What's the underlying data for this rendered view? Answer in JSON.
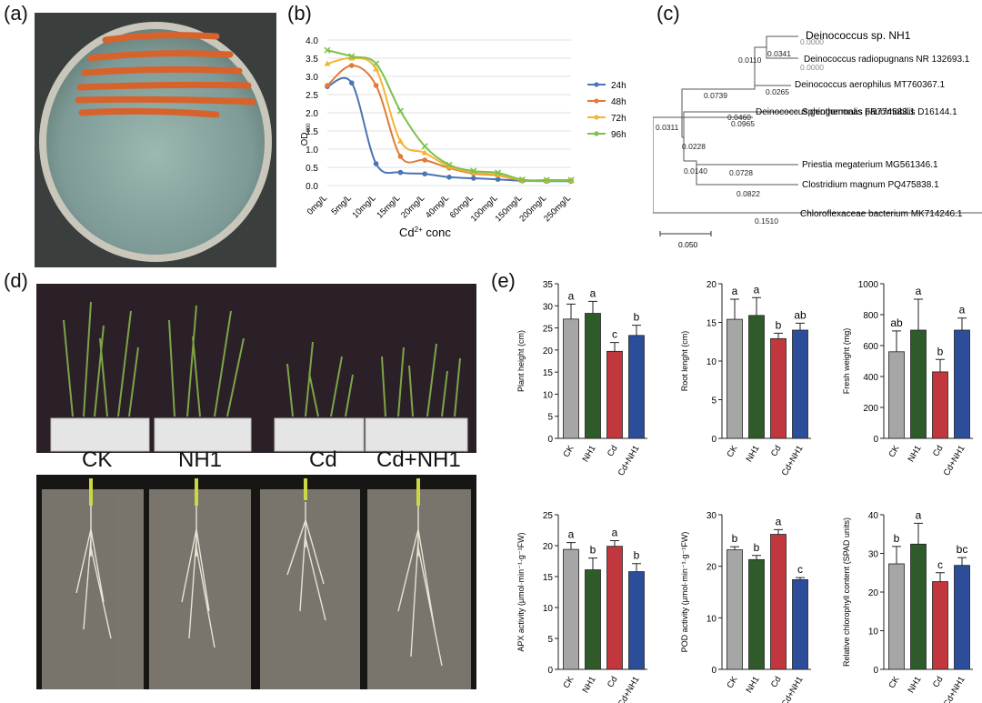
{
  "panel_labels": [
    "(a)",
    "(b)",
    "(c)",
    "(d)",
    "(e)"
  ],
  "photo_labels": {
    "ck": "CK",
    "nh1": "NH1",
    "cd": "Cd",
    "cdnh1": "Cd+NH1"
  },
  "colors": {
    "CK": "#a6a6a6",
    "NH1": "#2f5b2a",
    "Cd": "#c1373d",
    "Cd+NH1": "#2b4d9a",
    "24h": "#4a74b4",
    "48h": "#e07b39",
    "72h": "#f4b533",
    "96h": "#7cc24a"
  },
  "chart_data": [
    {
      "type": "line",
      "panel": "(b)",
      "categories": [
        "0mg/L",
        "5mg/L",
        "10mg/L",
        "15mg/L",
        "20mg/L",
        "40mg/L",
        "60mg/L",
        "100mg/L",
        "150mg/L",
        "200mg/L",
        "250mg/L"
      ],
      "xlabel_parts": [
        "Cd",
        "2+",
        " conc"
      ],
      "ylabel_parts": [
        "OD",
        "600"
      ],
      "ylim": [
        0,
        4.0
      ],
      "yticks": [
        "0.0",
        "0.5",
        "1.0",
        "1.5",
        "2.0",
        "2.5",
        "3.0",
        "3.5",
        "4.0"
      ],
      "grid": true,
      "legend_position": "right",
      "series": [
        {
          "name": "24h",
          "values": [
            2.72,
            2.82,
            0.6,
            0.36,
            0.32,
            0.23,
            0.2,
            0.17,
            0.13,
            0.12,
            0.12
          ]
        },
        {
          "name": "48h",
          "values": [
            2.75,
            3.3,
            2.75,
            0.8,
            0.7,
            0.48,
            0.33,
            0.28,
            0.14,
            0.13,
            0.13
          ]
        },
        {
          "name": "72h",
          "values": [
            3.35,
            3.5,
            3.2,
            1.22,
            0.9,
            0.52,
            0.36,
            0.3,
            0.15,
            0.14,
            0.14
          ]
        },
        {
          "name": "96h",
          "values": [
            3.72,
            3.55,
            3.35,
            2.05,
            1.08,
            0.57,
            0.4,
            0.35,
            0.16,
            0.15,
            0.15
          ]
        }
      ]
    },
    {
      "type": "tree",
      "panel": "(c)",
      "taxa": [
        "Deinococcus sp. NH1",
        "Deinococcus radiopugnans NR 132693.1",
        "Deinococcus aerophilus MT760367.1",
        "Deinococcus geothermalis FR774583.1",
        "Sphingomonas paucimobilis D16144.1",
        "Priestia megaterium MG561346.1",
        "Clostridium magnum PQ475838.1",
        "Chloroflexaceae bacterium MK714246.1"
      ],
      "branch_lengths": {
        "nh1": "0.0000",
        "radiopugnans": "0.0000",
        "n_nh1_rad": "0.0341",
        "n_aero": "0.0110",
        "aerophilus": "0.0265",
        "n_deino": "0.0739",
        "geothermalis": "0.0460",
        "n_ingroup": "0.0311",
        "sphingo": "0.0965",
        "n_sph_bac": "0.0228",
        "priestia": "0.0728",
        "n_pr_cl": "0.0140",
        "clostridium": "0.0822",
        "chloroflexaceae": "0.1510"
      },
      "scale_bar": "0.050"
    },
    {
      "type": "bar",
      "panel": "(e)",
      "categories": [
        "CK",
        "NH1",
        "Cd",
        "Cd+NH1"
      ],
      "subplots": [
        {
          "ylabel": "Plant height (cm)",
          "ylim": [
            0,
            35
          ],
          "yticks": [
            "0",
            "5",
            "10",
            "15",
            "20",
            "25",
            "30",
            "35"
          ],
          "values": [
            27,
            28.3,
            19.7,
            23.3
          ],
          "errors": [
            3.4,
            2.7,
            2.0,
            2.3
          ],
          "letters": [
            "a",
            "a",
            "c",
            "b"
          ]
        },
        {
          "ylabel": "Root lenght (cm)",
          "ylim": [
            0,
            20
          ],
          "yticks": [
            "0",
            "5",
            "10",
            "15",
            "20"
          ],
          "values": [
            15.4,
            15.9,
            12.9,
            14.0
          ],
          "errors": [
            2.6,
            2.3,
            0.7,
            0.9
          ],
          "letters": [
            "a",
            "a",
            "b",
            "ab"
          ]
        },
        {
          "ylabel": "Fresh weight (mg)",
          "ylim": [
            0,
            1000
          ],
          "yticks": [
            "0",
            "200",
            "400",
            "600",
            "800",
            "1000"
          ],
          "values": [
            560,
            700,
            430,
            700
          ],
          "errors": [
            135,
            200,
            80,
            78
          ],
          "letters": [
            "ab",
            "a",
            "b",
            "a"
          ]
        },
        {
          "ylabel": "APX activity (μmol·min⁻¹·g⁻¹FW)",
          "ylim": [
            0,
            25
          ],
          "yticks": [
            "0",
            "5",
            "10",
            "15",
            "20",
            "25"
          ],
          "values": [
            19.4,
            16.1,
            19.9,
            15.8
          ],
          "errors": [
            1.1,
            1.9,
            0.9,
            1.3
          ],
          "letters": [
            "a",
            "b",
            "a",
            "b"
          ]
        },
        {
          "ylabel": "POD activity (μmol·min⁻¹·g⁻¹FW)",
          "ylim": [
            0,
            30
          ],
          "yticks": [
            "0",
            "10",
            "20",
            "30"
          ],
          "values": [
            23.2,
            21.3,
            26.2,
            17.4
          ],
          "errors": [
            0.6,
            0.8,
            0.9,
            0.4
          ],
          "letters": [
            "b",
            "b",
            "a",
            "c"
          ]
        },
        {
          "ylabel": "Relative chlorophyll content (SPAD units)",
          "ylim": [
            0,
            40
          ],
          "yticks": [
            "0",
            "10",
            "20",
            "30",
            "40"
          ],
          "values": [
            27.3,
            32.4,
            22.7,
            26.9
          ],
          "errors": [
            4.5,
            5.4,
            2.3,
            2.0
          ],
          "letters": [
            "b",
            "a",
            "c",
            "bc"
          ]
        }
      ]
    }
  ]
}
